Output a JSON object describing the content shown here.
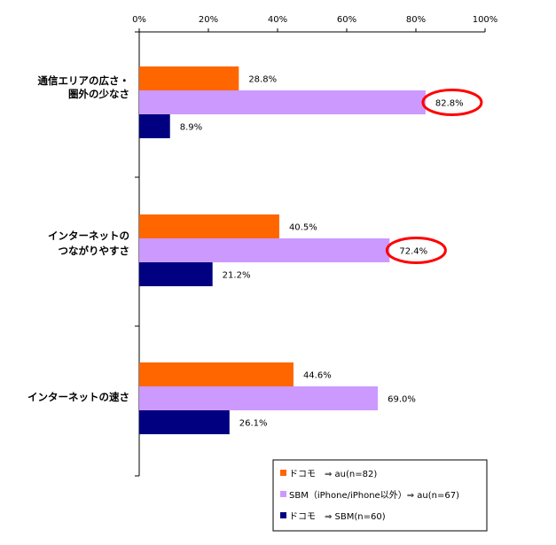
{
  "chart_data": {
    "type": "bar",
    "orientation": "horizontal",
    "categories": [
      [
        "通信エリアの広さ・",
        "圏外の少なさ"
      ],
      [
        "インターネットの",
        "つながりやすさ"
      ],
      [
        "インターネットの速さ"
      ]
    ],
    "series": [
      {
        "name": "ドコモ　⇒ au(n=82)",
        "color": "#ff6600",
        "values": [
          28.8,
          40.5,
          44.6
        ],
        "labels": [
          "28.8%",
          "40.5%",
          "44.6%"
        ]
      },
      {
        "name": "SBM（iPhone/iPhone以外）⇒ au(n=67)",
        "color": "#cc99ff",
        "values": [
          82.8,
          72.4,
          69.0
        ],
        "labels": [
          "82.8%",
          "72.4%",
          "69.0%"
        ]
      },
      {
        "name": "ドコモ　⇒ SBM(n=60)",
        "color": "#000080",
        "values": [
          8.9,
          21.2,
          26.1
        ],
        "labels": [
          "8.9%",
          "21.2%",
          "26.1%"
        ]
      }
    ],
    "xlim": [
      0,
      100
    ],
    "xticks": [
      "0%",
      "20%",
      "40%",
      "60%",
      "80%",
      "100%"
    ],
    "grid": false,
    "legend": "bottom-right",
    "highlighted": [
      {
        "series": 1,
        "category": 0
      },
      {
        "series": 1,
        "category": 1
      }
    ],
    "highlight_color": "#ff0000"
  }
}
